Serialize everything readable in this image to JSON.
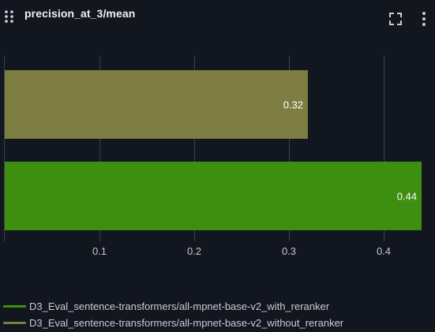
{
  "panel": {
    "title": "precision_at_3/mean"
  },
  "icons": {
    "drag": "drag-handle-icon",
    "fullscreen": "fullscreen-icon",
    "menu": "vertical-dots-menu-icon"
  },
  "colors": {
    "background": "#12161f",
    "grid": "#3a3f4a",
    "tick_label": "#c4c7ce",
    "value_label": "#ffffff"
  },
  "chart_data": {
    "type": "bar",
    "orientation": "horizontal",
    "title": "precision_at_3/mean",
    "xlabel": "",
    "ylabel": "",
    "xlim": [
      0,
      0.44
    ],
    "x_ticks": [
      0.1,
      0.2,
      0.3,
      0.4
    ],
    "x_tick_labels": [
      "0.1",
      "0.2",
      "0.3",
      "0.4"
    ],
    "grid": true,
    "legend_position": "bottom-left",
    "series": [
      {
        "name": "D3_Eval_sentence-transformers/all-mpnet-base-v2_without_reraker",
        "value": 0.32,
        "label": "0.32",
        "color": "#7e7d41"
      },
      {
        "name": "D3_Eval_sentence-transformers/all-mpnet-base-v2_with_reranker",
        "value": 0.44,
        "label": "0.44",
        "color": "#3e8e11"
      }
    ],
    "legend": [
      {
        "label": "D3_Eval_sentence-transformers/all-mpnet-base-v2_with_reranker",
        "color": "#3e8e11"
      },
      {
        "label": "D3_Eval_sentence-transformers/all-mpnet-base-v2_without_reranker",
        "color": "#7e7d41"
      }
    ]
  }
}
